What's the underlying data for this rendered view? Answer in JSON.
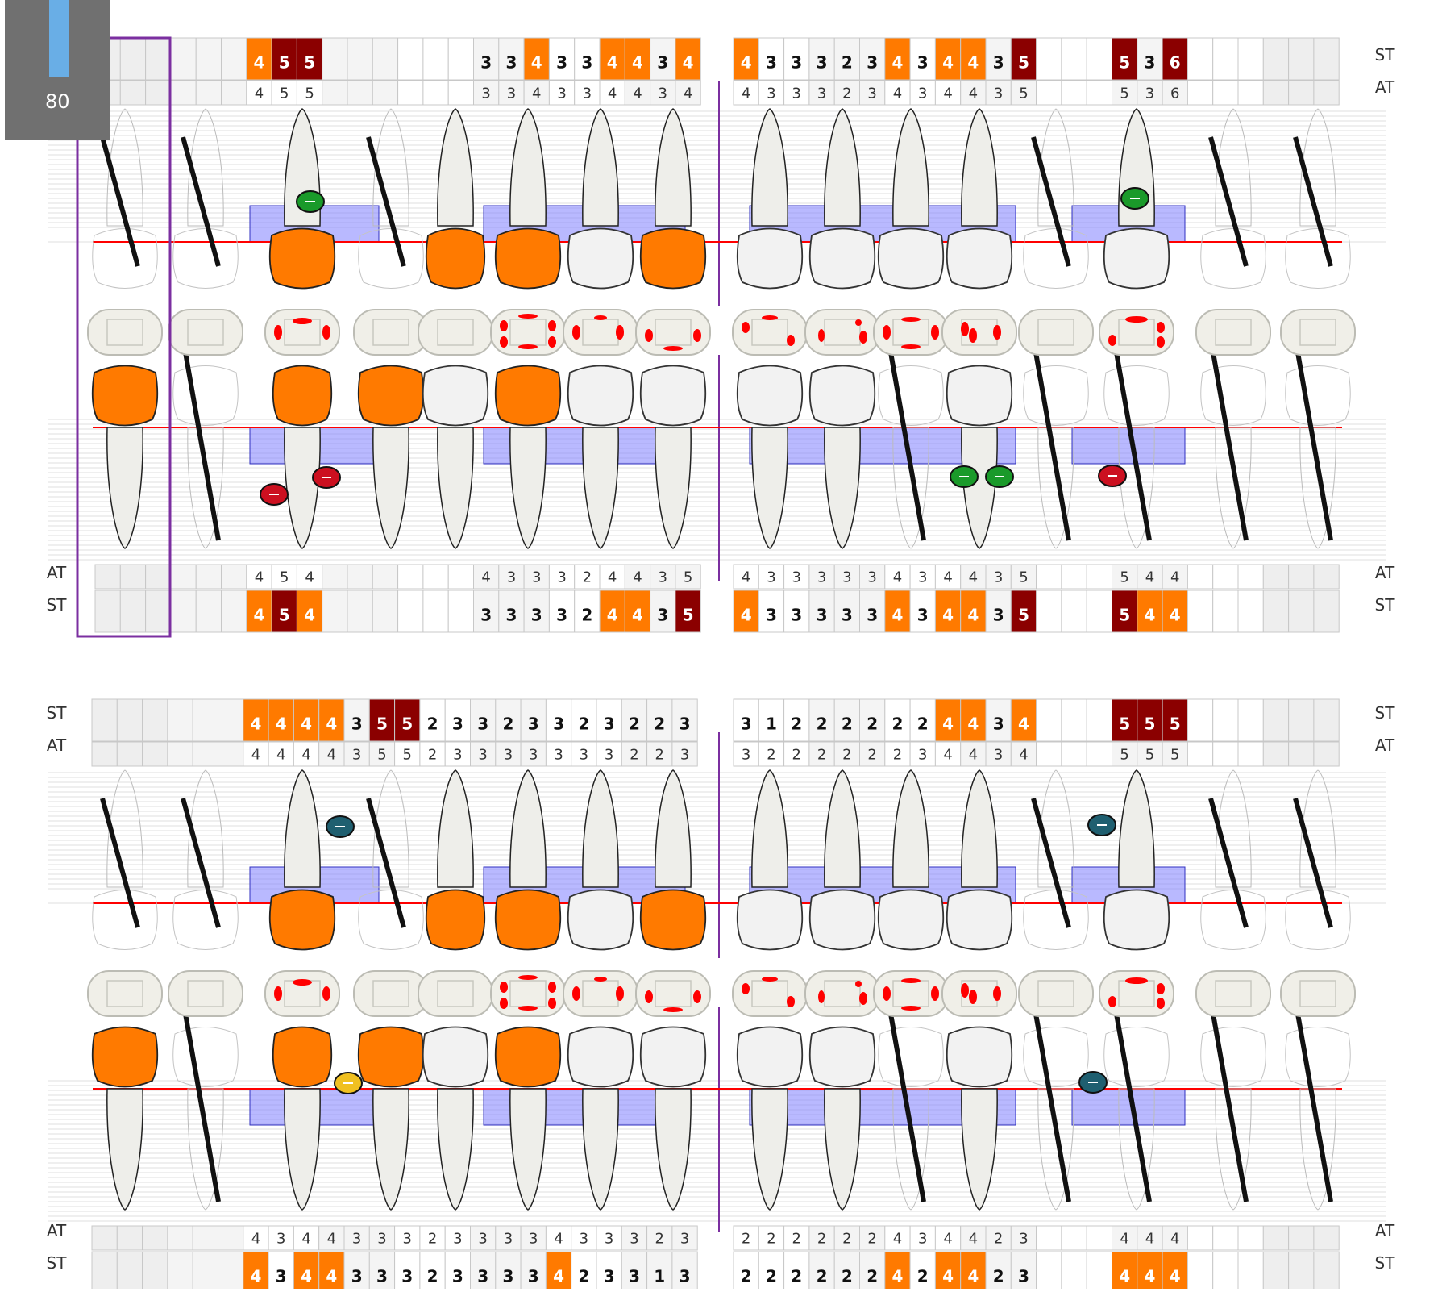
{
  "side_labels": {
    "st": "ST",
    "at": "AT"
  },
  "widget": {
    "value": "80"
  },
  "panels": [
    {
      "name": "upper-panel",
      "left": {
        "top_st": [
          "",
          "",
          "",
          "",
          "",
          "",
          "4",
          "5",
          "5",
          "",
          "",
          "",
          "",
          "",
          "",
          "3",
          "3",
          "4",
          "3",
          "3",
          "4",
          "4",
          "3",
          "4"
        ],
        "top_at": [
          "",
          "",
          "",
          "",
          "",
          "",
          "4",
          "5",
          "5",
          "",
          "",
          "",
          "",
          "",
          "",
          "3",
          "3",
          "4",
          "3",
          "3",
          "4",
          "4",
          "3",
          "4"
        ],
        "bottom_at": [
          "",
          "",
          "",
          "",
          "",
          "",
          "4",
          "5",
          "4",
          "",
          "",
          "",
          "",
          "",
          "",
          "4",
          "3",
          "3",
          "3",
          "2",
          "4",
          "4",
          "3",
          "5"
        ],
        "bottom_st": [
          "",
          "",
          "",
          "",
          "",
          "",
          "4",
          "5",
          "4",
          "",
          "",
          "",
          "",
          "",
          "",
          "3",
          "3",
          "3",
          "3",
          "2",
          "4",
          "4",
          "3",
          "5"
        ]
      },
      "right": {
        "top_st": [
          "4",
          "3",
          "3",
          "3",
          "2",
          "3",
          "4",
          "3",
          "4",
          "4",
          "3",
          "5",
          "",
          "",
          "",
          "5",
          "3",
          "6",
          "",
          "",
          "",
          "",
          "",
          ""
        ],
        "top_at": [
          "4",
          "3",
          "3",
          "3",
          "2",
          "3",
          "4",
          "3",
          "4",
          "4",
          "3",
          "5",
          "",
          "",
          "",
          "5",
          "3",
          "6",
          "",
          "",
          "",
          "",
          "",
          ""
        ],
        "bottom_at": [
          "4",
          "3",
          "3",
          "3",
          "3",
          "3",
          "4",
          "3",
          "4",
          "4",
          "3",
          "5",
          "",
          "",
          "",
          "5",
          "4",
          "4",
          "",
          "",
          "",
          "",
          "",
          ""
        ],
        "bottom_st": [
          "4",
          "3",
          "3",
          "3",
          "3",
          "3",
          "4",
          "3",
          "4",
          "4",
          "3",
          "5",
          "",
          "",
          "",
          "5",
          "4",
          "4",
          "",
          "",
          "",
          "",
          "",
          ""
        ]
      }
    },
    {
      "name": "lower-panel",
      "left": {
        "top_st": [
          "",
          "",
          "",
          "",
          "",
          "",
          "4",
          "4",
          "4",
          "4",
          "3",
          "5",
          "5",
          "2",
          "3",
          "3",
          "2",
          "3",
          "3",
          "2",
          "3",
          "2",
          "2",
          "3"
        ],
        "top_at": [
          "",
          "",
          "",
          "",
          "",
          "",
          "4",
          "4",
          "4",
          "4",
          "3",
          "5",
          "5",
          "2",
          "3",
          "3",
          "3",
          "3",
          "3",
          "3",
          "3",
          "2",
          "2",
          "3"
        ],
        "bottom_at": [
          "",
          "",
          "",
          "",
          "",
          "",
          "4",
          "3",
          "4",
          "4",
          "3",
          "3",
          "3",
          "2",
          "3",
          "3",
          "3",
          "3",
          "4",
          "3",
          "3",
          "3",
          "2",
          "3"
        ],
        "bottom_st": [
          "",
          "",
          "",
          "",
          "",
          "",
          "4",
          "3",
          "4",
          "4",
          "3",
          "3",
          "3",
          "2",
          "3",
          "3",
          "3",
          "3",
          "4",
          "2",
          "3",
          "3",
          "1",
          "3"
        ]
      },
      "right": {
        "top_st": [
          "3",
          "1",
          "2",
          "2",
          "2",
          "2",
          "2",
          "2",
          "4",
          "4",
          "3",
          "4",
          "",
          "",
          "",
          "5",
          "5",
          "5",
          "",
          "",
          "",
          "",
          "",
          ""
        ],
        "top_at": [
          "3",
          "2",
          "2",
          "2",
          "2",
          "2",
          "2",
          "3",
          "4",
          "4",
          "3",
          "4",
          "",
          "",
          "",
          "5",
          "5",
          "5",
          "",
          "",
          "",
          "",
          "",
          ""
        ],
        "bottom_at": [
          "2",
          "2",
          "2",
          "2",
          "2",
          "2",
          "4",
          "3",
          "4",
          "4",
          "2",
          "3",
          "",
          "",
          "",
          "4",
          "4",
          "4",
          "",
          "",
          "",
          "",
          "",
          ""
        ],
        "bottom_st": [
          "2",
          "2",
          "2",
          "2",
          "2",
          "2",
          "4",
          "2",
          "4",
          "4",
          "2",
          "3",
          "",
          "",
          "",
          "4",
          "4",
          "4",
          "",
          "",
          "",
          "",
          "",
          ""
        ]
      }
    }
  ],
  "colors": {
    "orange": "#ff7a00",
    "dark_red": "#8b0000",
    "gum_blue": "#8080ff",
    "gum_line": "#ff0000",
    "green": "#1a9a2a",
    "teal": "#1f5f70",
    "red_badge": "#cc1020",
    "yellow": "#f0c020",
    "purple_line": "#7b2fa0"
  },
  "teeth": {
    "upper_panel_top": [
      {
        "state": "missing"
      },
      {
        "state": "missing"
      },
      {
        "state": "crown"
      },
      {
        "state": "missing"
      },
      {
        "state": "crown_small"
      },
      {
        "state": "crown"
      },
      {
        "state": "normal"
      },
      {
        "state": "crown"
      },
      {
        "state": "normal"
      },
      {
        "state": "normal"
      },
      {
        "state": "normal"
      },
      {
        "state": "normal"
      },
      {
        "state": "missing"
      },
      {
        "state": "normal"
      },
      {
        "state": "missing"
      },
      {
        "state": "missing"
      }
    ]
  }
}
